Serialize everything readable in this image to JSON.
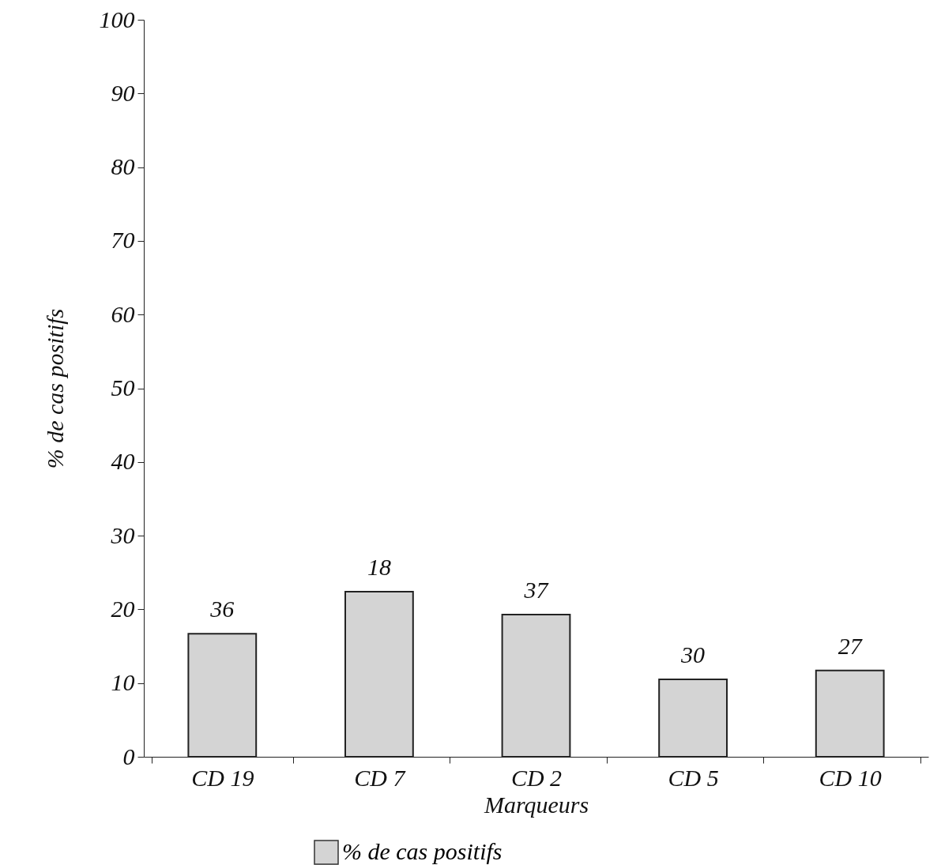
{
  "chart_data": {
    "type": "bar",
    "xlabel": "Marqueurs",
    "ylabel": "% de cas positifs",
    "categories": [
      "CD 19",
      "CD 7",
      "CD 2",
      "CD 5",
      "CD 10"
    ],
    "series": [
      {
        "name": "% de cas positifs",
        "color": "#d4d4d4",
        "values": [
          16.7,
          22.4,
          19.3,
          10.5,
          11.7
        ]
      }
    ],
    "annotations": [
      {
        "text": "36",
        "x": "CD 19",
        "y": 16.7
      },
      {
        "text": "18",
        "x": "CD 7",
        "y": 22.4
      },
      {
        "text": "37",
        "x": "CD 2",
        "y": 19.3
      },
      {
        "text": "30",
        "x": "CD 5",
        "y": 10.5
      },
      {
        "text": "27",
        "x": "CD 10",
        "y": 11.7
      }
    ],
    "ylim": [
      0,
      100
    ],
    "yticks": [
      0,
      10,
      20,
      30,
      40,
      50,
      60,
      70,
      80,
      90,
      100
    ],
    "grid": false,
    "legend": "bottom"
  }
}
